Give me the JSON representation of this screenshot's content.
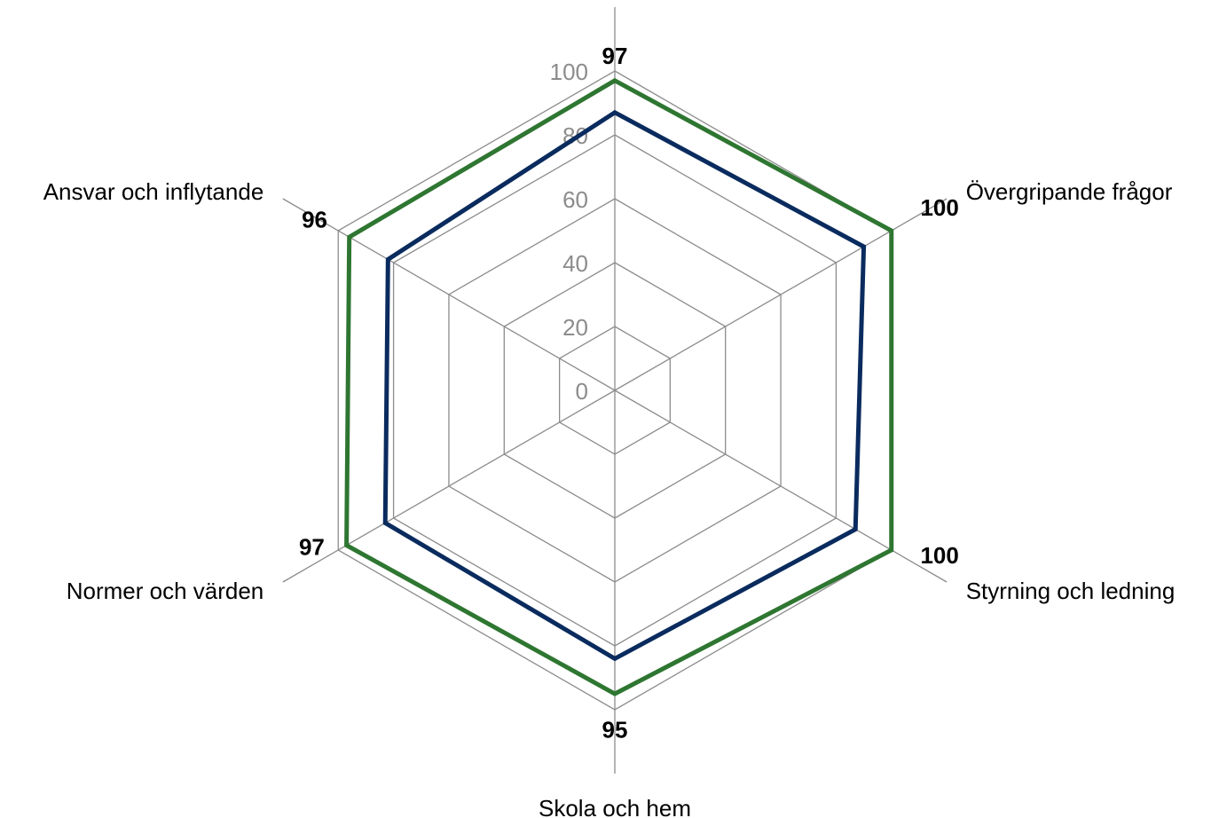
{
  "chart_data": {
    "type": "radar",
    "categories": [
      "",
      "Övergripande frågor",
      "Styrning och ledning",
      "Skola och hem",
      "Normer och värden",
      "Ansvar och inflytande"
    ],
    "rlim": [
      0,
      100
    ],
    "ticks": [
      "0",
      "20",
      "40",
      "60",
      "80",
      "100"
    ],
    "grid": true,
    "series": [
      {
        "values": [
          97,
          100,
          100,
          95,
          97,
          96
        ],
        "color": "#2e7631",
        "labels": [
          "97",
          "100",
          "100",
          "95",
          "97",
          "96"
        ]
      },
      {
        "values": [
          87,
          90,
          87,
          84,
          83,
          82
        ],
        "color": "#0a2b5e"
      }
    ],
    "grid_color": "#8c8c8c"
  }
}
